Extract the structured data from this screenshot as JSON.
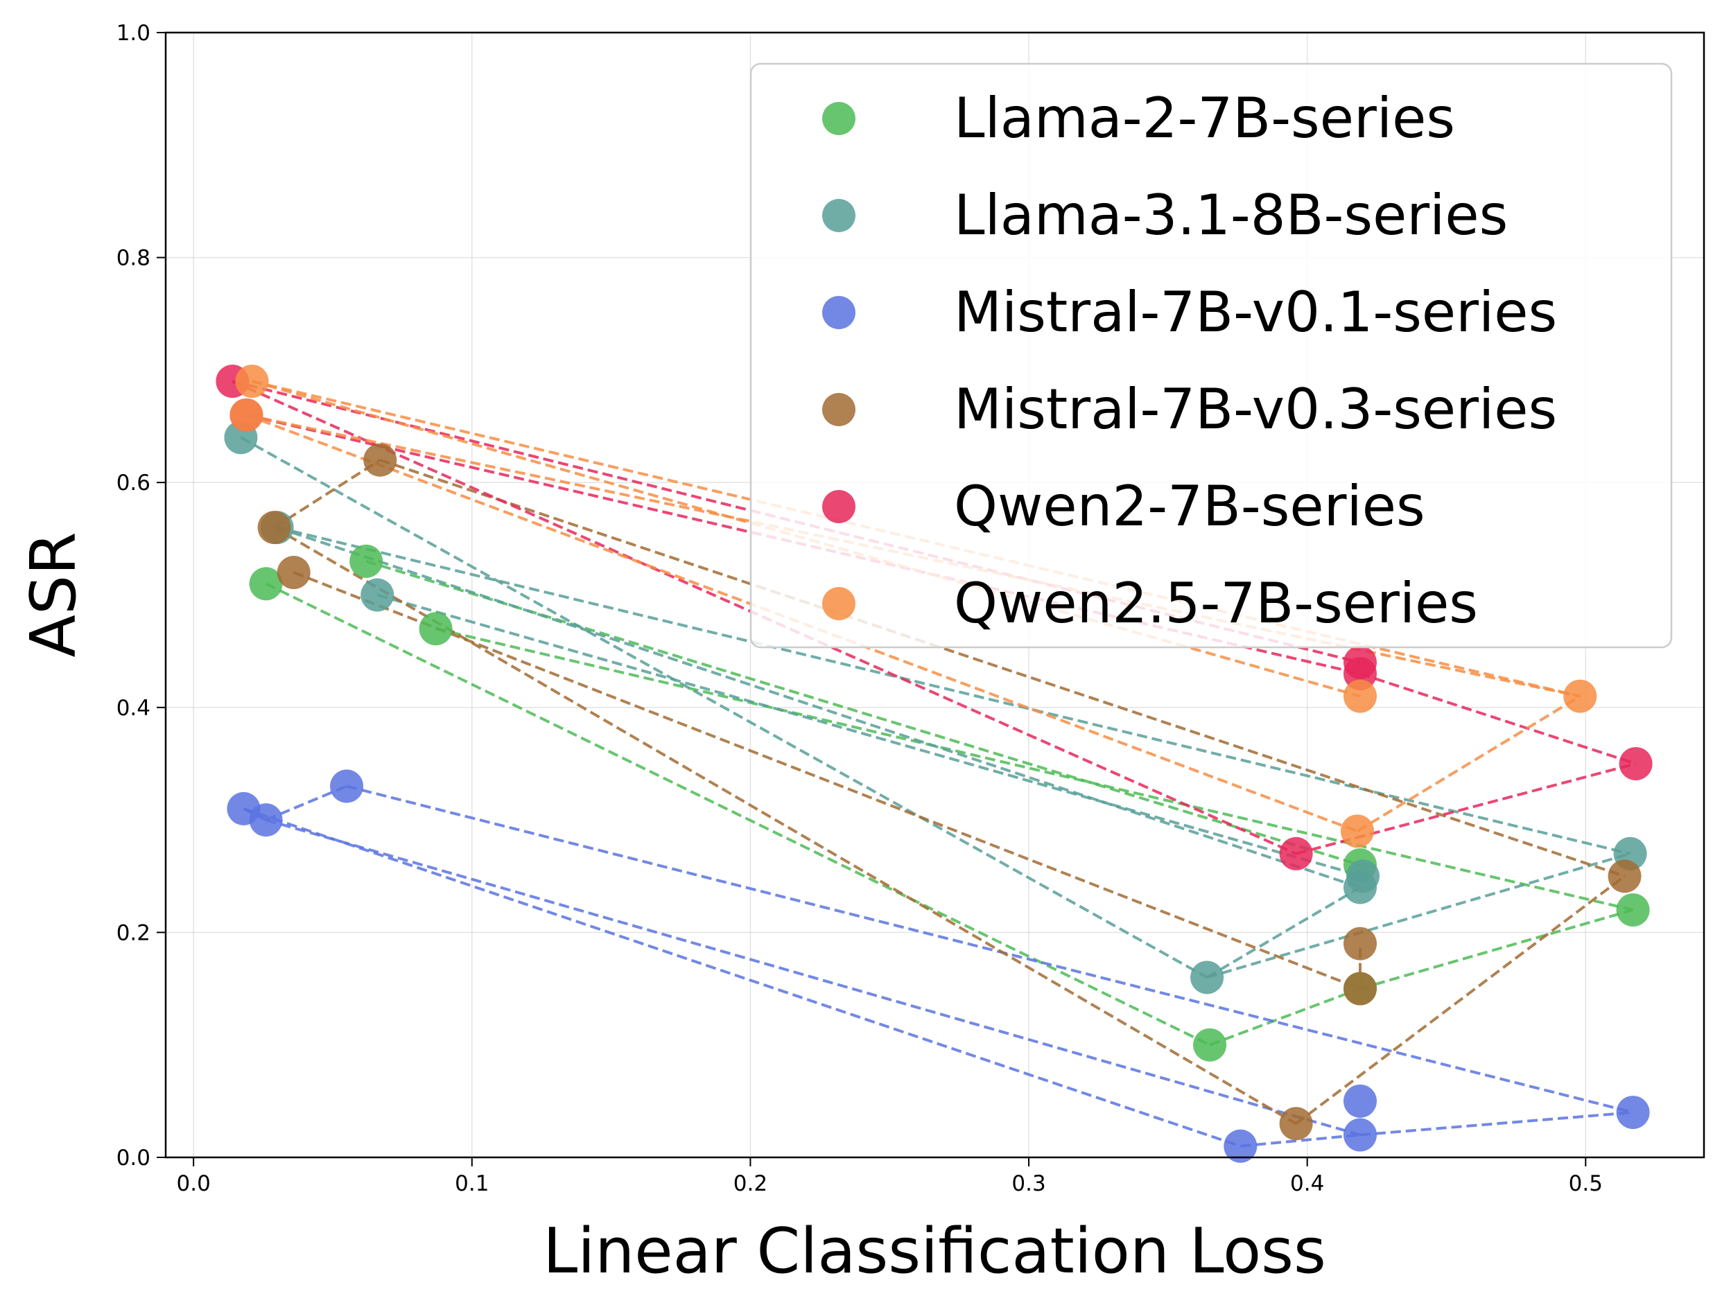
{
  "chart_data": {
    "type": "scatter",
    "title": "",
    "xlabel": "Linear Classification Loss",
    "ylabel": "ASR",
    "xlim": [
      -0.01,
      0.5425
    ],
    "ylim": [
      0.0,
      1.0
    ],
    "xticks": [
      0.0,
      0.1,
      0.2,
      0.3,
      0.4,
      0.5
    ],
    "xtick_labels": [
      "0.0",
      "0.1",
      "0.2",
      "0.3",
      "0.4",
      "0.5"
    ],
    "yticks": [
      0.0,
      0.2,
      0.4,
      0.6,
      0.8,
      1.0
    ],
    "ytick_labels": [
      "0.0",
      "0.2",
      "0.4",
      "0.6",
      "0.8",
      "1.0"
    ],
    "grid": true,
    "legend_position": "top-right",
    "series": [
      {
        "name": "Llama-2-7B-series",
        "color": "#4dbb56",
        "points": [
          [
            0.026,
            0.51
          ],
          [
            0.062,
            0.53
          ],
          [
            0.087,
            0.47
          ],
          [
            0.365,
            0.1
          ],
          [
            0.419,
            0.15
          ],
          [
            0.419,
            0.26
          ],
          [
            0.517,
            0.22
          ]
        ],
        "links": [
          [
            0,
            3
          ],
          [
            1,
            5
          ],
          [
            2,
            6
          ],
          [
            3,
            4
          ],
          [
            4,
            6
          ]
        ]
      },
      {
        "name": "Llama-3.1-8B-series",
        "color": "#589f98",
        "points": [
          [
            0.017,
            0.64
          ],
          [
            0.03,
            0.56
          ],
          [
            0.066,
            0.5
          ],
          [
            0.364,
            0.16
          ],
          [
            0.419,
            0.24
          ],
          [
            0.42,
            0.25
          ],
          [
            0.516,
            0.27
          ]
        ],
        "links": [
          [
            0,
            3
          ],
          [
            1,
            4
          ],
          [
            2,
            5
          ],
          [
            3,
            4
          ],
          [
            3,
            6
          ],
          [
            1,
            6
          ]
        ]
      },
      {
        "name": "Mistral-7B-v0.1-series",
        "color": "#5b73e0",
        "points": [
          [
            0.018,
            0.31
          ],
          [
            0.026,
            0.3
          ],
          [
            0.055,
            0.33
          ],
          [
            0.376,
            0.01
          ],
          [
            0.419,
            0.02
          ],
          [
            0.419,
            0.05
          ],
          [
            0.517,
            0.04
          ]
        ],
        "links": [
          [
            0,
            1
          ],
          [
            1,
            2
          ],
          [
            0,
            3
          ],
          [
            1,
            4
          ],
          [
            2,
            6
          ],
          [
            3,
            4
          ],
          [
            4,
            6
          ]
        ]
      },
      {
        "name": "Mistral-7B-v0.3-series",
        "color": "#a26b33",
        "points": [
          [
            0.029,
            0.56
          ],
          [
            0.036,
            0.52
          ],
          [
            0.067,
            0.62
          ],
          [
            0.396,
            0.03
          ],
          [
            0.419,
            0.15
          ],
          [
            0.419,
            0.19
          ],
          [
            0.514,
            0.25
          ]
        ],
        "links": [
          [
            0,
            3
          ],
          [
            1,
            4
          ],
          [
            2,
            6
          ],
          [
            0,
            2
          ],
          [
            3,
            6
          ],
          [
            4,
            5
          ]
        ]
      },
      {
        "name": "Qwen2-7B-series",
        "color": "#e6275a",
        "points": [
          [
            0.014,
            0.69
          ],
          [
            0.019,
            0.66
          ],
          [
            0.396,
            0.27
          ],
          [
            0.419,
            0.43
          ],
          [
            0.419,
            0.44
          ],
          [
            0.518,
            0.35
          ]
        ],
        "links": [
          [
            0,
            2
          ],
          [
            1,
            3
          ],
          [
            0,
            4
          ],
          [
            2,
            5
          ],
          [
            3,
            5
          ]
        ]
      },
      {
        "name": "Qwen2.5-7B-series",
        "color": "#f78d43",
        "points": [
          [
            0.019,
            0.66
          ],
          [
            0.021,
            0.69
          ],
          [
            0.418,
            0.29
          ],
          [
            0.419,
            0.41
          ],
          [
            0.498,
            0.41
          ]
        ],
        "links": [
          [
            0,
            2
          ],
          [
            1,
            3
          ],
          [
            0,
            4
          ],
          [
            1,
            4
          ],
          [
            2,
            4
          ]
        ]
      }
    ]
  }
}
